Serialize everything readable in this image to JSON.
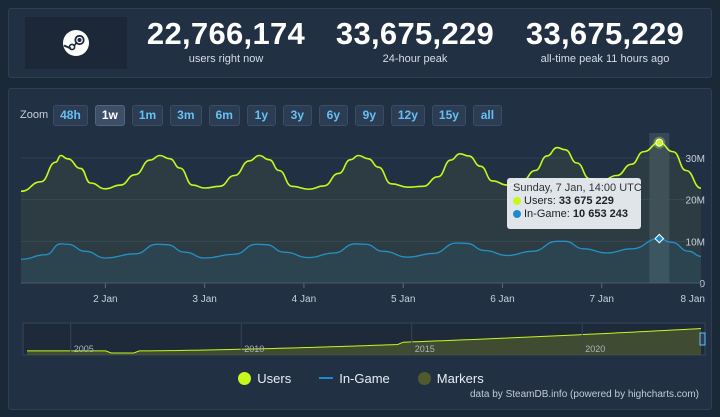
{
  "stats": [
    {
      "value": "22,766,174",
      "label": "users right now"
    },
    {
      "value": "33,675,229",
      "label": "24-hour peak"
    },
    {
      "value": "33,675,229",
      "label": "all-time peak 11 hours ago"
    }
  ],
  "zoom": {
    "label": "Zoom",
    "buttons": [
      "48h",
      "1w",
      "1m",
      "3m",
      "6m",
      "1y",
      "3y",
      "6y",
      "9y",
      "12y",
      "15y",
      "all"
    ],
    "active": "1w"
  },
  "tooltip": {
    "title": "Sunday, 7 Jan, 14:00 UTC",
    "users_label": "Users:",
    "users_value": "33 675 229",
    "ingame_label": "In-Game:",
    "ingame_value": "10 653 243"
  },
  "legend": {
    "users": "Users",
    "ingame": "In-Game",
    "markers": "Markers"
  },
  "credits": "data by SteamDB.info (powered by highcharts.com)",
  "colors": {
    "users": "#c6f81e",
    "ingame": "#1a8ad1",
    "markers": "#4f5b2e",
    "background": "#223044",
    "accent": "#66c0f4"
  },
  "chart_data": {
    "type": "line",
    "x_tick_labels": [
      "2 Jan",
      "3 Jan",
      "4 Jan",
      "5 Jan",
      "6 Jan",
      "7 Jan",
      "8 Jan"
    ],
    "y_tick_labels": [
      "0",
      "10M",
      "20M",
      "30M"
    ],
    "ylim": [
      0,
      36000000
    ],
    "xlim_days": [
      1.15,
      8.0
    ],
    "series": [
      {
        "name": "Users",
        "points": [
          [
            1.15,
            22.0
          ],
          [
            1.35,
            24.3
          ],
          [
            1.5,
            29.0
          ],
          [
            1.55,
            30.6
          ],
          [
            1.62,
            29.8
          ],
          [
            1.75,
            27.5
          ],
          [
            1.85,
            24.0
          ],
          [
            2.0,
            22.6
          ],
          [
            2.15,
            23.5
          ],
          [
            2.3,
            26.0
          ],
          [
            2.45,
            29.5
          ],
          [
            2.55,
            30.6
          ],
          [
            2.65,
            29.8
          ],
          [
            2.75,
            27.6
          ],
          [
            2.88,
            23.5
          ],
          [
            3.0,
            22.8
          ],
          [
            3.15,
            23.2
          ],
          [
            3.3,
            25.8
          ],
          [
            3.45,
            29.3
          ],
          [
            3.55,
            30.6
          ],
          [
            3.65,
            29.6
          ],
          [
            3.75,
            27.0
          ],
          [
            3.88,
            23.2
          ],
          [
            4.05,
            22.5
          ],
          [
            4.2,
            23.3
          ],
          [
            4.35,
            26.3
          ],
          [
            4.47,
            29.6
          ],
          [
            4.55,
            30.6
          ],
          [
            4.65,
            29.8
          ],
          [
            4.75,
            27.8
          ],
          [
            4.88,
            23.8
          ],
          [
            5.05,
            23.0
          ],
          [
            5.2,
            23.2
          ],
          [
            5.35,
            25.5
          ],
          [
            5.48,
            29.5
          ],
          [
            5.57,
            31.0
          ],
          [
            5.66,
            30.5
          ],
          [
            5.78,
            28.0
          ],
          [
            5.9,
            24.5
          ],
          [
            6.05,
            23.5
          ],
          [
            6.2,
            24.5
          ],
          [
            6.33,
            27.0
          ],
          [
            6.45,
            30.5
          ],
          [
            6.55,
            32.5
          ],
          [
            6.63,
            32.0
          ],
          [
            6.75,
            28.8
          ],
          [
            6.88,
            25.0
          ],
          [
            7.0,
            24.5
          ],
          [
            7.15,
            25.8
          ],
          [
            7.3,
            28.5
          ],
          [
            7.42,
            31.5
          ],
          [
            7.58,
            33.68
          ],
          [
            7.72,
            31.5
          ],
          [
            7.85,
            27.0
          ],
          [
            8.0,
            22.77
          ]
        ]
      },
      {
        "name": "In-Game",
        "points": [
          [
            1.15,
            5.7
          ],
          [
            1.4,
            6.8
          ],
          [
            1.55,
            9.4
          ],
          [
            1.62,
            9.3
          ],
          [
            1.8,
            7.6
          ],
          [
            2.0,
            6.0
          ],
          [
            2.3,
            7.0
          ],
          [
            2.52,
            9.3
          ],
          [
            2.62,
            9.2
          ],
          [
            2.8,
            7.4
          ],
          [
            3.0,
            6.0
          ],
          [
            3.3,
            6.9
          ],
          [
            3.52,
            9.3
          ],
          [
            3.62,
            9.2
          ],
          [
            3.8,
            7.4
          ],
          [
            4.05,
            6.1
          ],
          [
            4.3,
            7.2
          ],
          [
            4.52,
            9.4
          ],
          [
            4.62,
            9.3
          ],
          [
            4.8,
            7.6
          ],
          [
            5.05,
            6.2
          ],
          [
            5.3,
            7.1
          ],
          [
            5.54,
            9.6
          ],
          [
            5.64,
            9.5
          ],
          [
            5.82,
            7.8
          ],
          [
            6.05,
            6.6
          ],
          [
            6.3,
            7.6
          ],
          [
            6.55,
            10.0
          ],
          [
            6.63,
            10.0
          ],
          [
            6.82,
            8.2
          ],
          [
            7.05,
            7.2
          ],
          [
            7.3,
            8.2
          ],
          [
            7.58,
            10.65
          ],
          [
            7.7,
            9.8
          ],
          [
            7.88,
            7.6
          ],
          [
            8.0,
            6.4
          ]
        ]
      }
    ],
    "highlight": {
      "x": 7.58,
      "users": 33675229,
      "ingame": 10653243
    },
    "navigator": {
      "tick_labels": [
        "2005",
        "2010",
        "2015",
        "2020"
      ]
    },
    "legend_position": "bottom-center",
    "grid": true
  }
}
